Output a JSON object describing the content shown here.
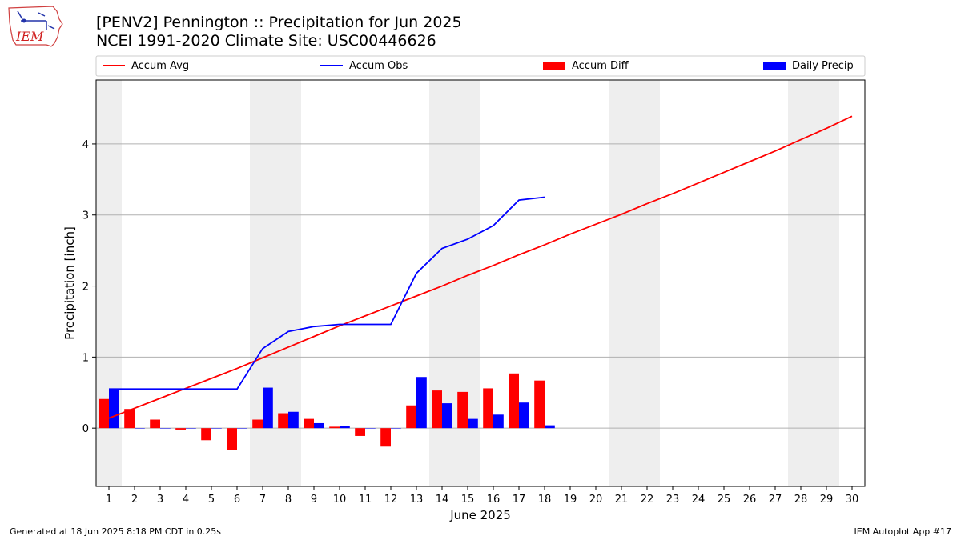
{
  "header": {
    "title_line1": "[PENV2] Pennington :: Precipitation for Jun 2025",
    "title_line2": "NCEI 1991-2020 Climate Site: USC00446626",
    "logo_text": "IEM"
  },
  "footer": {
    "left": "Generated at 18 Jun 2025 8:18 PM CDT in 0.25s",
    "right": "IEM Autoplot App #17"
  },
  "chart_data": {
    "type": "bar",
    "xlabel": "June 2025",
    "ylabel": "Precipitation [inch]",
    "xlim": [
      0.5,
      30.5
    ],
    "ylim": [
      -0.82,
      4.9
    ],
    "yticks": [
      0,
      1,
      2,
      3,
      4
    ],
    "x_ticks": [
      1,
      2,
      3,
      4,
      5,
      6,
      7,
      8,
      9,
      10,
      11,
      12,
      13,
      14,
      15,
      16,
      17,
      18,
      19,
      20,
      21,
      22,
      23,
      24,
      25,
      26,
      27,
      28,
      29,
      30
    ],
    "grid": "horizontal",
    "legend_position": "top",
    "weekend_shading": [
      [
        0.5,
        1.5
      ],
      [
        6.5,
        8.5
      ],
      [
        13.5,
        15.5
      ],
      [
        20.5,
        22.5
      ],
      [
        27.5,
        29.5
      ]
    ],
    "series": [
      {
        "name": "Accum Avg",
        "kind": "line",
        "color": "#ff0000",
        "x": [
          1,
          2,
          3,
          4,
          5,
          6,
          7,
          8,
          9,
          10,
          11,
          12,
          13,
          14,
          15,
          16,
          17,
          18,
          19,
          20,
          21,
          22,
          23,
          24,
          25,
          26,
          27,
          28,
          29,
          30
        ],
        "values": [
          0.14,
          0.28,
          0.42,
          0.56,
          0.7,
          0.84,
          0.99,
          1.14,
          1.29,
          1.44,
          1.58,
          1.72,
          1.86,
          2.0,
          2.15,
          2.29,
          2.44,
          2.58,
          2.73,
          2.87,
          3.01,
          3.16,
          3.3,
          3.45,
          3.6,
          3.75,
          3.9,
          4.06,
          4.22,
          4.39
        ]
      },
      {
        "name": "Accum Obs",
        "kind": "line",
        "color": "#0000ff",
        "x": [
          1,
          2,
          3,
          4,
          5,
          6,
          7,
          8,
          9,
          10,
          11,
          12,
          13,
          14,
          15,
          16,
          17,
          18
        ],
        "values": [
          0.55,
          0.55,
          0.55,
          0.55,
          0.55,
          0.55,
          1.12,
          1.36,
          1.43,
          1.46,
          1.46,
          1.46,
          2.18,
          2.53,
          2.66,
          2.85,
          3.21,
          3.25
        ]
      },
      {
        "name": "Accum Diff",
        "kind": "bar",
        "color": "#ff0000",
        "x": [
          1,
          2,
          3,
          4,
          5,
          6,
          7,
          8,
          9,
          10,
          11,
          12,
          13,
          14,
          15,
          16,
          17,
          18
        ],
        "values": [
          0.41,
          0.27,
          0.12,
          -0.02,
          -0.17,
          -0.31,
          0.12,
          0.21,
          0.13,
          0.02,
          -0.11,
          -0.26,
          0.32,
          0.53,
          0.51,
          0.56,
          0.77,
          0.67
        ]
      },
      {
        "name": "Daily Precip",
        "kind": "bar",
        "color": "#0000ff",
        "x": [
          1,
          2,
          3,
          4,
          5,
          6,
          7,
          8,
          9,
          10,
          11,
          12,
          13,
          14,
          15,
          16,
          17,
          18
        ],
        "values": [
          0.55,
          0,
          0,
          0,
          0,
          0,
          0.57,
          0.23,
          0.07,
          0.03,
          0,
          0,
          0.72,
          0.35,
          0.13,
          0.19,
          0.36,
          0.04
        ]
      }
    ]
  }
}
